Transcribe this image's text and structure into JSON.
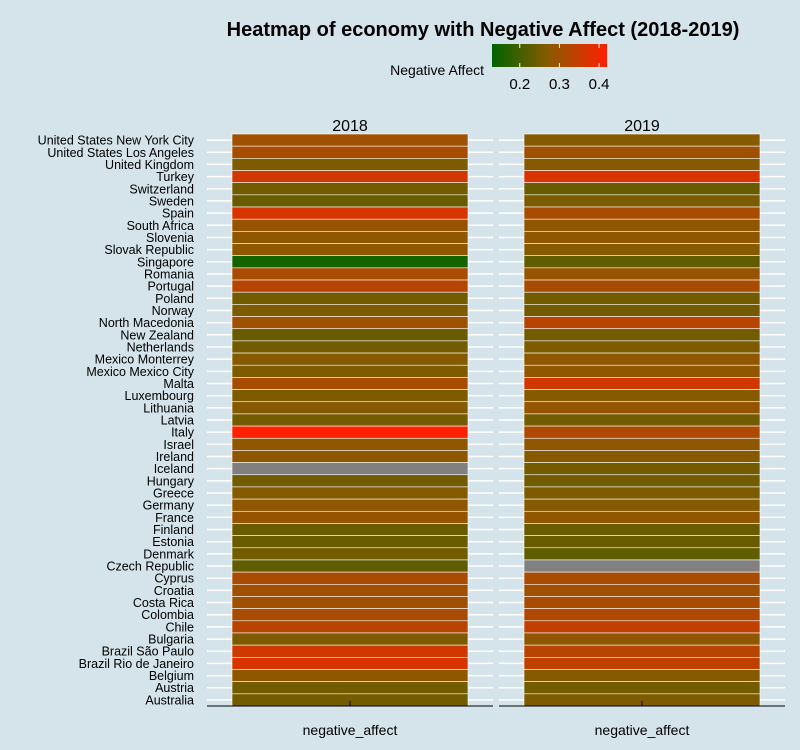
{
  "chart_data": {
    "type": "heatmap",
    "title": "Heatmap of economy with Negative Affect (2018-2019)",
    "legend": {
      "title": "Negative Affect",
      "placement": "top",
      "ticks": [
        0.2,
        0.3,
        0.4
      ],
      "range": [
        0.13,
        0.42
      ],
      "colors": [
        "#006400",
        "#8b5a00",
        "#ff2000"
      ]
    },
    "na_color": "#808080",
    "panels": [
      "2018",
      "2019"
    ],
    "x_categories": [
      "negative_affect"
    ],
    "rows": [
      "United States New York City",
      "United States Los Angeles",
      "United Kingdom",
      "Turkey",
      "Switzerland",
      "Sweden",
      "Spain",
      "South Africa",
      "Slovenia",
      "Slovak Republic",
      "Singapore",
      "Romania",
      "Portugal",
      "Poland",
      "Norway",
      "North Macedonia",
      "New Zealand",
      "Netherlands",
      "Mexico Monterrey",
      "Mexico Mexico City",
      "Malta",
      "Luxembourg",
      "Lithuania",
      "Latvia",
      "Italy",
      "Israel",
      "Ireland",
      "Iceland",
      "Hungary",
      "Greece",
      "Germany",
      "France",
      "Finland",
      "Estonia",
      "Denmark",
      "Czech Republic",
      "Cyprus",
      "Croatia",
      "Costa Rica",
      "Colombia",
      "Chile",
      "Bulgaria",
      "Brazil São Paulo",
      "Brazil Rio de Janeiro",
      "Belgium",
      "Austria",
      "Australia"
    ],
    "series": [
      {
        "name": "2018",
        "values": [
          0.3,
          0.31,
          0.26,
          0.36,
          0.25,
          0.24,
          0.37,
          0.29,
          0.28,
          0.28,
          0.15,
          0.31,
          0.33,
          0.25,
          0.26,
          0.3,
          0.24,
          0.25,
          0.27,
          0.26,
          0.31,
          0.26,
          0.27,
          0.25,
          0.42,
          0.28,
          0.28,
          null,
          0.25,
          0.27,
          0.28,
          0.29,
          0.24,
          0.24,
          0.25,
          0.23,
          0.31,
          0.3,
          0.3,
          0.31,
          0.33,
          0.26,
          0.36,
          0.37,
          0.28,
          0.25,
          0.25
        ]
      },
      {
        "name": "2019",
        "values": [
          0.27,
          0.3,
          0.27,
          0.37,
          0.24,
          0.26,
          0.31,
          0.28,
          0.28,
          0.27,
          0.23,
          0.29,
          0.31,
          0.25,
          0.25,
          0.33,
          0.25,
          0.26,
          0.28,
          0.28,
          0.36,
          0.27,
          0.29,
          0.25,
          0.32,
          0.28,
          0.27,
          0.25,
          0.25,
          0.26,
          0.27,
          0.28,
          0.24,
          0.24,
          0.23,
          null,
          0.31,
          0.3,
          0.31,
          0.32,
          0.34,
          0.28,
          0.33,
          0.34,
          0.27,
          0.25,
          0.26
        ]
      }
    ]
  }
}
